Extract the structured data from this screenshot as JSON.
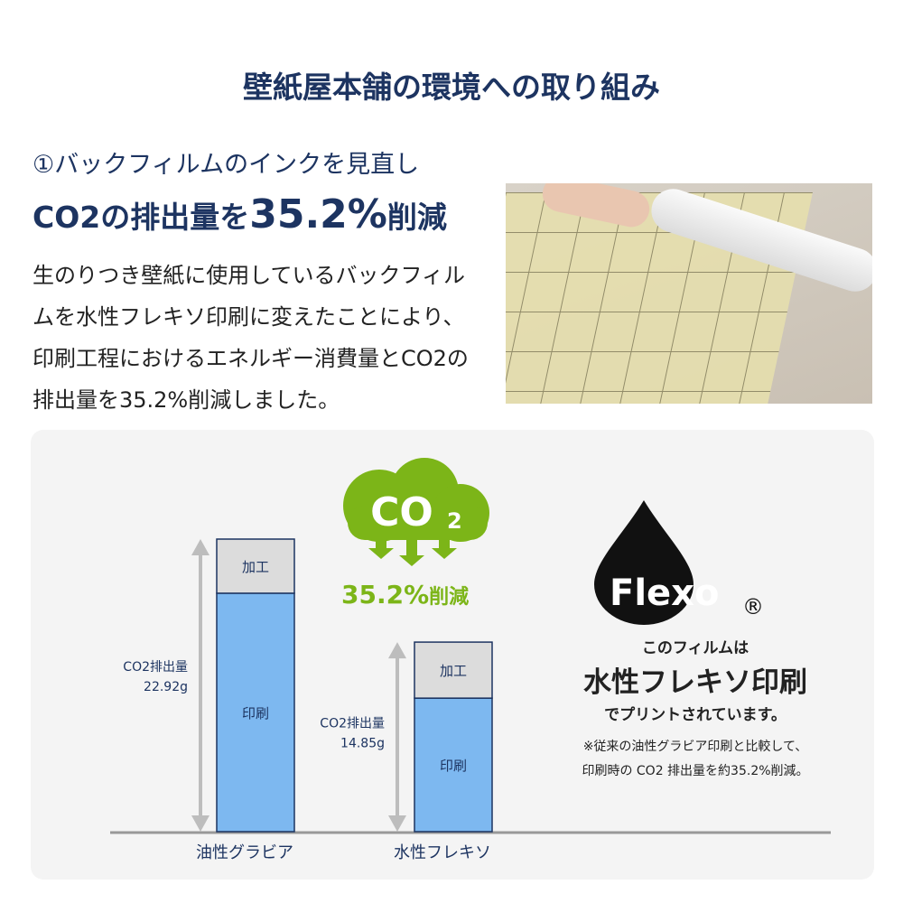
{
  "header": {
    "title": "壁紙屋本舗の環境への取り組み"
  },
  "intro": {
    "subtitle": "①バックフィルムのインクを見直し",
    "headline_pre": "CO2の排出量を",
    "headline_value": "35.2%",
    "headline_post": "削減",
    "description": "生のりつき壁紙に使用しているバックフィルムを水性フレキソ印刷に変えたことにより、印刷工程におけるエネルギー消費量とCO2の排出量を35.2%削減しました。"
  },
  "badge": {
    "co2": "CO",
    "co2_sub": "2",
    "reduction": "35.2%",
    "reduction_suffix": "削減",
    "color": "#7cb518"
  },
  "flexo": {
    "logo": "Flexo",
    "registered": "®",
    "line1": "このフィルムは",
    "line2": "水性フレキソ印刷",
    "line3": "でプリントされています。",
    "note1": "※従来の油性グラビア印刷と比較して、",
    "note2": "印刷時の CO2 排出量を約35.2%削減。"
  },
  "chart_data": {
    "type": "bar",
    "stacked": true,
    "categories": [
      "油性グラビア",
      "水性フレキソ"
    ],
    "series": [
      {
        "name": "印刷",
        "values": [
          18.68,
          10.46
        ],
        "color": "#7db8f0"
      },
      {
        "name": "加工",
        "values": [
          4.24,
          4.39
        ],
        "color": "#dcdcdc"
      }
    ],
    "totals": [
      22.92,
      14.85
    ],
    "total_labels": [
      {
        "label": "CO2排出量",
        "value": "22.92g"
      },
      {
        "label": "CO2排出量",
        "value": "14.85g"
      }
    ],
    "ylim": [
      0,
      22.92
    ]
  }
}
